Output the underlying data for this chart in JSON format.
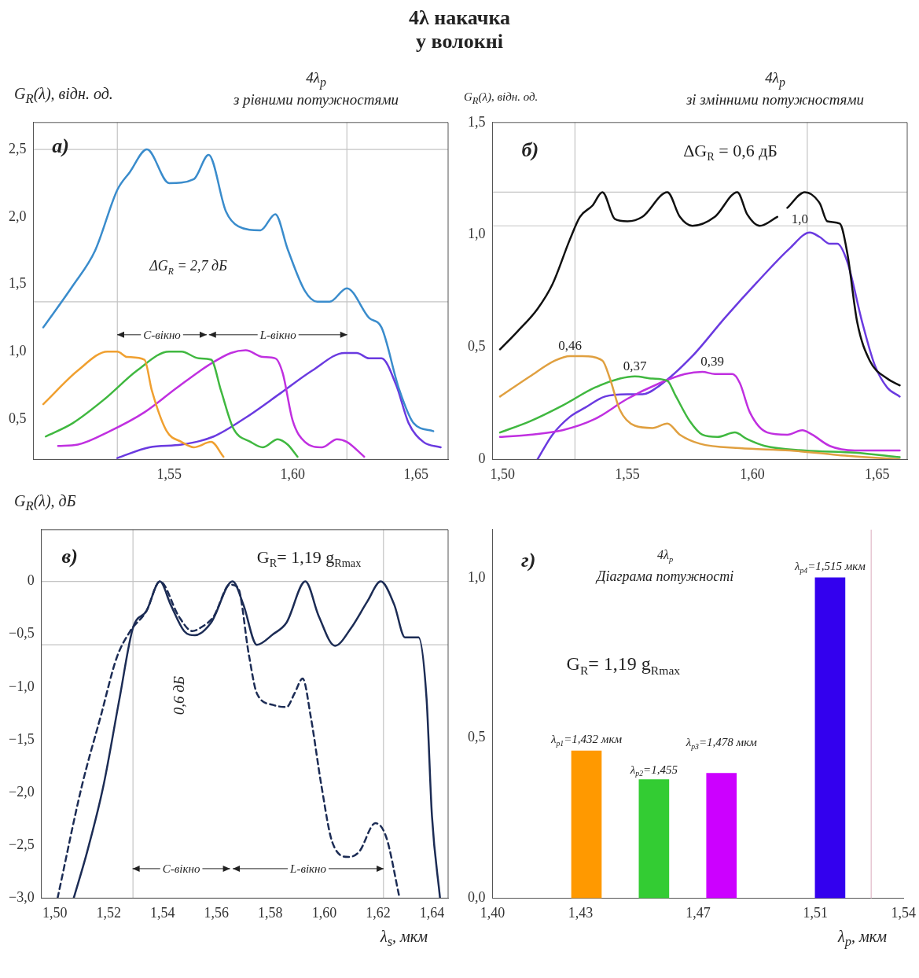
{
  "chart_data": [
    {
      "type": "line",
      "title": "4λ накачка\nу волокні",
      "subtitle": "4λ$_{p}$\nз рівними потужностями",
      "ylabel": "G$_{R}$(λ), відн. од.",
      "marker": "none",
      "line_style": "solid",
      "xlim": [
        1.495,
        1.663
      ],
      "ylim": [
        0.2,
        2.7
      ],
      "xticks": [
        {
          "value": 1.55,
          "label": "1,55"
        },
        {
          "value": 1.6,
          "label": "1,60"
        },
        {
          "value": 1.65,
          "label": "1,65"
        }
      ],
      "yticks": [
        {
          "value": 0.5,
          "label": "0,5"
        },
        {
          "value": 1.0,
          "label": "1,0"
        },
        {
          "value": 1.5,
          "label": "1,5"
        },
        {
          "value": 2.0,
          "label": "2,0"
        },
        {
          "value": 2.5,
          "label": "2,5"
        }
      ],
      "series": [
        {
          "color": "#3a8ccc",
          "x": [
            1.499,
            1.511,
            1.52,
            1.529,
            1.534,
            1.541,
            1.55,
            1.56,
            1.566,
            1.573,
            1.578,
            1.587,
            1.593,
            1.598,
            1.605,
            1.61,
            1.615,
            1.622,
            1.631,
            1.636,
            1.643,
            1.649,
            1.657
          ],
          "values": [
            1.18,
            1.49,
            1.75,
            2.2,
            2.33,
            2.5,
            2.25,
            2.28,
            2.46,
            2.04,
            1.93,
            1.9,
            2.02,
            1.76,
            1.45,
            1.37,
            1.37,
            1.47,
            1.25,
            1.18,
            0.73,
            0.47,
            0.41
          ]
        },
        {
          "color": "#f0a030",
          "x": [
            1.499,
            1.513,
            1.525,
            1.529,
            1.533,
            1.54,
            1.543,
            1.549,
            1.555,
            1.56,
            1.567,
            1.572
          ],
          "values": [
            0.61,
            0.86,
            1.0,
            1.0,
            0.96,
            0.94,
            0.71,
            0.41,
            0.33,
            0.29,
            0.33,
            0.22
          ]
        },
        {
          "color": "#40b840",
          "x": [
            1.5,
            1.511,
            1.524,
            1.537,
            1.55,
            1.555,
            1.562,
            1.567,
            1.571,
            1.576,
            1.583,
            1.588,
            1.594,
            1.598,
            1.602
          ],
          "values": [
            0.37,
            0.47,
            0.65,
            0.86,
            1.0,
            1.0,
            0.95,
            0.94,
            0.71,
            0.43,
            0.33,
            0.29,
            0.35,
            0.31,
            0.22
          ]
        },
        {
          "color": "#c030e0",
          "x": [
            1.505,
            1.513,
            1.526,
            1.54,
            1.553,
            1.566,
            1.575,
            1.581,
            1.588,
            1.593,
            1.596,
            1.6,
            1.605,
            1.612,
            1.618,
            1.622,
            1.629
          ],
          "values": [
            0.3,
            0.31,
            0.41,
            0.55,
            0.73,
            0.9,
            0.99,
            1.01,
            0.96,
            0.95,
            0.84,
            0.49,
            0.33,
            0.29,
            0.35,
            0.33,
            0.22
          ]
        },
        {
          "color": "#6a3ae0",
          "x": [
            1.529,
            1.542,
            1.555,
            1.568,
            1.581,
            1.595,
            1.608,
            1.621,
            1.626,
            1.631,
            1.636,
            1.642,
            1.647,
            1.653,
            1.66
          ],
          "values": [
            0.21,
            0.29,
            0.31,
            0.37,
            0.51,
            0.69,
            0.86,
            0.99,
            0.99,
            0.95,
            0.95,
            0.75,
            0.47,
            0.33,
            0.29
          ]
        }
      ],
      "ref_lines": [
        {
          "axis": "x",
          "value": 1.529
        },
        {
          "axis": "x",
          "value": 1.622
        },
        {
          "axis": "y",
          "value": 2.5
        },
        {
          "axis": "y",
          "value": 1.37
        }
      ],
      "annotations": [
        "а)",
        "ΔG$_{R}$ = 2,7 дБ",
        "C-вікно",
        "L-вікно"
      ]
    },
    {
      "type": "line",
      "subtitle": "4λ$_{p}$\nзі змінними потужностями",
      "ylabel": "G$_{R}$(λ), відн. од.",
      "marker": "none",
      "line_style": "solid",
      "xlim": [
        1.496,
        1.662
      ],
      "ylim": [
        0,
        1.5
      ],
      "xticks": [
        {
          "value": 1.5,
          "label": "1,50"
        },
        {
          "value": 1.55,
          "label": "1,55"
        },
        {
          "value": 1.6,
          "label": "1,60"
        },
        {
          "value": 1.65,
          "label": "1,65"
        }
      ],
      "yticks": [
        0,
        {
          "value": 0.5,
          "label": "0,5"
        },
        {
          "value": 1.0,
          "label": "1,0"
        },
        {
          "value": 1.5,
          "label": "1,5"
        }
      ],
      "series": [
        {
          "color": "#111111",
          "x": [
            1.499,
            1.506,
            1.514,
            1.52,
            1.527,
            1.531,
            1.536,
            1.54,
            1.545,
            1.55,
            1.556,
            1.566,
            1.571,
            1.576,
            1.585,
            1.594,
            1.598,
            1.603,
            1.61,
            1.612,
            1.614,
            1.621,
            1.627,
            1.63,
            1.635,
            1.638,
            1.642,
            1.647,
            1.654,
            1.659
          ],
          "values": [
            0.49,
            0.57,
            0.67,
            0.78,
            0.98,
            1.08,
            1.13,
            1.19,
            1.07,
            1.06,
            1.08,
            1.19,
            1.08,
            1.04,
            1.08,
            1.19,
            1.09,
            1.04,
            1.08,
            null,
            1.12,
            1.19,
            1.14,
            1.06,
            1.05,
            0.92,
            0.61,
            0.44,
            0.36,
            0.33
          ]
        },
        {
          "color": "#e0a040",
          "x": [
            1.499,
            1.511,
            1.521,
            1.527,
            1.532,
            1.54,
            1.543,
            1.547,
            1.553,
            1.56,
            1.566,
            1.571,
            1.579,
            1.595,
            1.615,
            1.634,
            1.659
          ],
          "values": [
            0.28,
            0.37,
            0.44,
            0.46,
            0.46,
            0.44,
            0.36,
            0.22,
            0.15,
            0.14,
            0.16,
            0.11,
            0.07,
            0.05,
            0.04,
            0.02,
            0.0
          ]
        },
        {
          "color": "#40b840",
          "x": [
            1.499,
            1.511,
            1.524,
            1.537,
            1.547,
            1.553,
            1.56,
            1.566,
            1.569,
            1.575,
            1.58,
            1.586,
            1.593,
            1.598,
            1.605,
            1.621,
            1.641,
            1.659
          ],
          "values": [
            0.12,
            0.17,
            0.24,
            0.32,
            0.36,
            0.37,
            0.36,
            0.35,
            0.29,
            0.17,
            0.11,
            0.1,
            0.12,
            0.09,
            0.06,
            0.04,
            0.03,
            0.01
          ]
        },
        {
          "color": "#c030e0",
          "x": [
            1.499,
            1.511,
            1.524,
            1.537,
            1.55,
            1.563,
            1.573,
            1.58,
            1.585,
            1.592,
            1.595,
            1.599,
            1.606,
            1.614,
            1.62,
            1.624,
            1.631,
            1.641,
            1.659
          ],
          "values": [
            0.1,
            0.11,
            0.13,
            0.18,
            0.27,
            0.34,
            0.38,
            0.39,
            0.38,
            0.38,
            0.34,
            0.21,
            0.12,
            0.11,
            0.13,
            0.11,
            0.06,
            0.04,
            0.04
          ]
        },
        {
          "color": "#6a3ae0",
          "x": [
            1.514,
            1.52,
            1.527,
            1.533,
            1.541,
            1.55,
            1.556,
            1.563,
            1.576,
            1.589,
            1.602,
            1.615,
            1.623,
            1.627,
            1.631,
            1.634,
            1.638,
            1.644,
            1.649,
            1.654,
            1.659
          ],
          "values": [
            0.0,
            0.11,
            0.19,
            0.23,
            0.28,
            0.29,
            0.29,
            0.33,
            0.46,
            0.63,
            0.79,
            0.94,
            1.01,
            0.99,
            0.96,
            0.96,
            0.88,
            0.61,
            0.42,
            0.32,
            0.28
          ]
        }
      ],
      "ref_lines": [
        {
          "axis": "x",
          "value": 1.529
        },
        {
          "axis": "x",
          "value": 1.622
        },
        {
          "axis": "y",
          "value": 1.19
        },
        {
          "axis": "y",
          "value": 1.04
        }
      ],
      "annotations": [
        "б)",
        "ΔG$_{R}$ = 0,6 дБ",
        {
          "text": "0,46",
          "x": 1.527,
          "y": 0.46
        },
        {
          "text": "0,37",
          "x": 1.553,
          "y": 0.37
        },
        {
          "text": "0,39",
          "x": 1.584,
          "y": 0.39
        },
        {
          "text": "1,0",
          "x": 1.619,
          "y": 1.01
        }
      ]
    },
    {
      "type": "line",
      "ylabel": "G$_{R}$(λ), дБ",
      "xlabel": "λ$_{s}$, мкм",
      "marker": "none",
      "line_style": "solid",
      "xlim": [
        1.495,
        1.646
      ],
      "ylim": [
        -3,
        0.49
      ],
      "xticks": [
        {
          "value": 1.5,
          "label": "1,50"
        },
        {
          "value": 1.52,
          "label": "1,52"
        },
        {
          "value": 1.54,
          "label": "1,54"
        },
        {
          "value": 1.56,
          "label": "1,56"
        },
        {
          "value": 1.58,
          "label": "1,58"
        },
        {
          "value": 1.6,
          "label": "1,60"
        },
        {
          "value": 1.62,
          "label": "1,62"
        },
        {
          "value": 1.64,
          "label": "1,64"
        }
      ],
      "yticks": [
        {
          "value": -3,
          "label": "−3,0"
        },
        {
          "value": -2.5,
          "label": "−2,5"
        },
        {
          "value": -2,
          "label": "−2,0"
        },
        {
          "value": -1.5,
          "label": "−1,5"
        },
        {
          "value": -1,
          "label": "−1,0"
        },
        {
          "value": -0.5,
          "label": "−0,5"
        },
        0
      ],
      "series": [
        {
          "color": "#1c2c55",
          "x": [
            1.507,
            1.512,
            1.518,
            1.524,
            1.529,
            1.534,
            1.539,
            1.543,
            1.548,
            1.552,
            1.558,
            1.566,
            1.57,
            1.575,
            1.581,
            1.586,
            1.593,
            1.598,
            1.604,
            1.61,
            1.616,
            1.621,
            1.626,
            1.63,
            1.635,
            1.638,
            1.64,
            1.643
          ],
          "values": [
            -3.0,
            -2.56,
            -1.94,
            -1.11,
            -0.44,
            -0.28,
            0.0,
            -0.22,
            -0.47,
            -0.51,
            -0.39,
            0.0,
            -0.22,
            -0.6,
            -0.5,
            -0.39,
            0.0,
            -0.33,
            -0.61,
            -0.44,
            -0.19,
            0.0,
            -0.22,
            -0.53,
            -0.53,
            -1.11,
            -2.22,
            -3.0
          ]
        },
        {
          "color": "#1c2c55",
          "line_style": "dashed",
          "x": [
            1.501,
            1.51,
            1.517,
            1.523,
            1.528,
            1.534,
            1.539,
            1.546,
            1.551,
            1.554,
            1.559,
            1.565,
            1.568,
            1.572,
            1.575,
            1.581,
            1.586,
            1.589,
            1.592,
            1.595,
            1.599,
            1.603,
            1.609,
            1.613,
            1.619,
            1.623,
            1.628
          ],
          "values": [
            -3.0,
            -1.94,
            -1.28,
            -0.72,
            -0.47,
            -0.28,
            0.0,
            -0.33,
            -0.47,
            -0.44,
            -0.33,
            -0.03,
            -0.06,
            -0.69,
            -1.06,
            -1.17,
            -1.19,
            -1.06,
            -0.92,
            -1.28,
            -1.94,
            -2.47,
            -2.61,
            -2.56,
            -2.29,
            -2.42,
            -3.0
          ]
        }
      ],
      "ref_lines": [
        {
          "axis": "x",
          "value": 1.529
        },
        {
          "axis": "x",
          "value": 1.622
        },
        {
          "axis": "y",
          "value": 0
        },
        {
          "axis": "y",
          "value": -0.6
        }
      ],
      "annotations": [
        "в)",
        "G$_{R}$= 1,19 g$_{Rmax}$",
        "0,6 дБ",
        "C-вікно",
        "L-вікно"
      ]
    },
    {
      "type": "bar",
      "xlabel": "λ$_{p}$, мкм",
      "xlim": [
        1.4,
        1.54
      ],
      "ylim": [
        0,
        1.15
      ],
      "xticks": [
        {
          "value": 1.4,
          "label": "1,40"
        },
        {
          "value": 1.43,
          "label": "1,43"
        },
        {
          "value": 1.47,
          "label": "1,47"
        },
        {
          "value": 1.51,
          "label": "1,51"
        },
        {
          "value": 1.54,
          "label": "1,54"
        }
      ],
      "yticks": [
        {
          "value": 0,
          "label": "0,0"
        },
        {
          "value": 0.5,
          "label": "0,5"
        },
        {
          "value": 1.0,
          "label": "1,0"
        }
      ],
      "x": [
        1.432,
        1.455,
        1.478,
        1.515
      ],
      "values": [
        0.46,
        0.37,
        0.39,
        1.0
      ],
      "colors": [
        "#ff9900",
        "#33cc33",
        "#cc00ff",
        "#3300ee"
      ],
      "ref_lines": [
        {
          "axis": "x",
          "value": 1.529,
          "color": "#e0b8c8"
        }
      ],
      "annotations": [
        "г)",
        "4λ$_{p}$",
        "Діаграма потужності",
        "G$_{R}$= 1,19 g$_{Rmax}$",
        {
          "text": "λ$_{p1}$=1,432 мкм",
          "x": 1.432,
          "y": 0.46
        },
        {
          "text": "λ$_{p2}$=1,455",
          "x": 1.455,
          "y": 0.37
        },
        {
          "text": "λ$_{p3}$=1,478 мкм",
          "x": 1.478,
          "y": 0.39
        },
        {
          "text": "λ$_{p4}$=1,515 мкм",
          "x": 1.515,
          "y": 1.0
        }
      ]
    }
  ]
}
